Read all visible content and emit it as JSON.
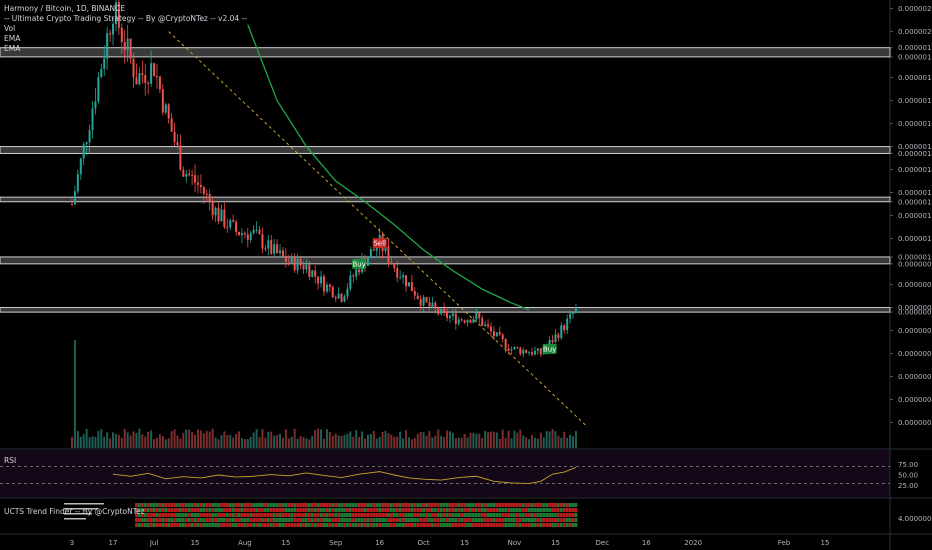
{
  "header": {
    "title": "Harmony / Bitcoin, 1D, BINANCE",
    "strategy": "-- Ultimate Crypto Trading Strategy -- By @CryptoNTez -- v2.04 --",
    "vol": "Vol",
    "ema1": "EMA",
    "ema2": "EMA"
  },
  "rsi": {
    "title": "RSI",
    "ticks": [
      "75.00",
      "50.00",
      "25.00"
    ],
    "levels": [
      70,
      30
    ]
  },
  "trend": {
    "title": "UCTS Trend Finder -- By @CryptoNTez",
    "tick": "4.00000000"
  },
  "signals": [
    {
      "text": "Sell",
      "type": "sell",
      "day": 105,
      "price": 1.08e-06
    },
    {
      "text": "Buy",
      "type": "buy",
      "day": 98,
      "price": 9.9e-07
    },
    {
      "text": "Buy",
      "type": "buy",
      "day": 163,
      "price": 6.2e-07
    }
  ],
  "chart_data": {
    "type": "candlestick",
    "title": "Harmony / Bitcoin, 1D, BINANCE",
    "start_date": "2019-06-03",
    "xlim_days": [
      0,
      300
    ],
    "x_ticks": [
      {
        "label": "3",
        "day": 0
      },
      {
        "label": "17",
        "day": 14
      },
      {
        "label": "Jul",
        "day": 28
      },
      {
        "label": "15",
        "day": 42
      },
      {
        "label": "Aug",
        "day": 59
      },
      {
        "label": "15",
        "day": 73
      },
      {
        "label": "Sep",
        "day": 90
      },
      {
        "label": "16",
        "day": 105
      },
      {
        "label": "Oct",
        "day": 120
      },
      {
        "label": "15",
        "day": 134
      },
      {
        "label": "Nov",
        "day": 151
      },
      {
        "label": "15",
        "day": 165
      },
      {
        "label": "Dec",
        "day": 181
      },
      {
        "label": "16",
        "day": 196
      },
      {
        "label": "2020",
        "day": 212
      },
      {
        "label": "Feb",
        "day": 243
      },
      {
        "label": "15",
        "day": 257
      }
    ],
    "ylim": [
      2.5e-07,
      2.12e-06
    ],
    "y_ticks": [
      "0.00000210",
      "0.00000200",
      "0.00000193",
      "0.00000189",
      "0.00000180",
      "0.00000170",
      "0.00000160",
      "0.00000150",
      "0.00000147",
      "0.00000140",
      "0.00000130",
      "0.00000126",
      "0.00000120",
      "0.00000110",
      "0.00000102",
      "0.00000099",
      "0.00000090",
      "0.00000080",
      "0.00000078",
      "0.00000070",
      "0.00000060",
      "0.00000050",
      "0.00000040",
      "0.00000030"
    ],
    "zones": [
      [
        1.89e-06,
        1.93e-06
      ],
      [
        1.47e-06,
        1.5e-06
      ],
      [
        1.26e-06,
        1.28e-06
      ],
      [
        9.9e-07,
        1.02e-06
      ],
      [
        7.8e-07,
        8e-07
      ]
    ],
    "trendline": [
      [
        33,
        2e-06
      ],
      [
        176,
        2.8e-07
      ]
    ],
    "ema_line": [
      [
        60,
        2.03e-06
      ],
      [
        70,
        1.7e-06
      ],
      [
        80,
        1.5e-06
      ],
      [
        90,
        1.35e-06
      ],
      [
        100,
        1.26e-06
      ],
      [
        110,
        1.16e-06
      ],
      [
        120,
        1.05e-06
      ],
      [
        130,
        9.6e-07
      ],
      [
        140,
        8.8e-07
      ],
      [
        150,
        8.2e-07
      ],
      [
        156,
        7.9e-07
      ]
    ],
    "close_path": [
      [
        0,
        1.25e-06
      ],
      [
        14,
        2.1e-06
      ],
      [
        22,
        1.8e-06
      ],
      [
        28,
        1.85e-06
      ],
      [
        32,
        1.65e-06
      ],
      [
        38,
        1.4e-06
      ],
      [
        44,
        1.32e-06
      ],
      [
        50,
        1.2e-06
      ],
      [
        56,
        1.13e-06
      ],
      [
        62,
        1.12e-06
      ],
      [
        68,
        1.05e-06
      ],
      [
        74,
        1e-06
      ],
      [
        80,
        9.8e-07
      ],
      [
        86,
        9e-07
      ],
      [
        92,
        8.5e-07
      ],
      [
        98,
        9.8e-07
      ],
      [
        105,
        1.08e-06
      ],
      [
        110,
        9.8e-07
      ],
      [
        115,
        9e-07
      ],
      [
        120,
        8.2e-07
      ],
      [
        126,
        7.7e-07
      ],
      [
        132,
        7.5e-07
      ],
      [
        138,
        7.6e-07
      ],
      [
        144,
        6.8e-07
      ],
      [
        150,
        6.2e-07
      ],
      [
        156,
        6.1e-07
      ],
      [
        160,
        6e-07
      ],
      [
        164,
        6.6e-07
      ],
      [
        168,
        7.2e-07
      ],
      [
        172,
        7.9e-07
      ]
    ],
    "volume_spikes": [
      [
        1,
        1.0
      ],
      [
        22,
        0.14
      ],
      [
        60,
        0.07
      ],
      [
        150,
        0.06
      ],
      [
        172,
        0.05
      ]
    ],
    "rsi_path": [
      [
        14,
        52
      ],
      [
        20,
        47
      ],
      [
        26,
        54
      ],
      [
        32,
        41
      ],
      [
        38,
        46
      ],
      [
        44,
        43
      ],
      [
        50,
        50
      ],
      [
        56,
        45
      ],
      [
        62,
        47
      ],
      [
        68,
        51
      ],
      [
        74,
        48
      ],
      [
        80,
        55
      ],
      [
        86,
        49
      ],
      [
        92,
        44
      ],
      [
        98,
        52
      ],
      [
        105,
        58
      ],
      [
        110,
        50
      ],
      [
        115,
        43
      ],
      [
        120,
        40
      ],
      [
        126,
        38
      ],
      [
        132,
        44
      ],
      [
        138,
        47
      ],
      [
        144,
        35
      ],
      [
        150,
        31
      ],
      [
        156,
        30
      ],
      [
        160,
        35
      ],
      [
        164,
        52
      ],
      [
        168,
        57
      ],
      [
        172,
        68
      ]
    ]
  }
}
